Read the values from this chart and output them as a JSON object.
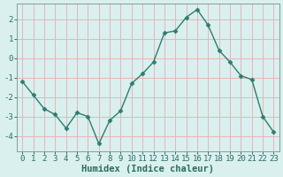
{
  "x": [
    0,
    1,
    2,
    3,
    4,
    5,
    6,
    7,
    8,
    9,
    10,
    11,
    12,
    13,
    14,
    15,
    16,
    17,
    18,
    19,
    20,
    21,
    22,
    23
  ],
  "y": [
    -1.2,
    -1.9,
    -2.6,
    -2.9,
    -3.6,
    -2.8,
    -3.0,
    -4.4,
    -3.2,
    -2.7,
    -1.3,
    -0.8,
    -0.2,
    1.3,
    1.4,
    2.1,
    2.5,
    1.7,
    0.4,
    -0.2,
    -0.9,
    -1.1,
    -3.0,
    -3.8
  ],
  "line_color": "#2d7d6e",
  "marker": "D",
  "markersize": 2.5,
  "linewidth": 1.0,
  "bg_color": "#d9f0ef",
  "grid_color": "#e8b4b8",
  "xlabel": "Humidex (Indice chaleur)",
  "xlabel_fontsize": 7.5,
  "yticks": [
    -4,
    -3,
    -2,
    -1,
    0,
    1,
    2
  ],
  "xtick_labels": [
    "0",
    "1",
    "2",
    "3",
    "4",
    "5",
    "6",
    "7",
    "8",
    "9",
    "10",
    "11",
    "12",
    "13",
    "14",
    "15",
    "16",
    "17",
    "18",
    "19",
    "20",
    "21",
    "22",
    "23"
  ],
  "ylim": [
    -4.8,
    2.8
  ],
  "xlim": [
    -0.5,
    23.5
  ],
  "tick_fontsize": 6.5,
  "tick_color": "#2d6b60",
  "spine_color": "#8a9a99",
  "fig_bg": "#d9f0ef"
}
